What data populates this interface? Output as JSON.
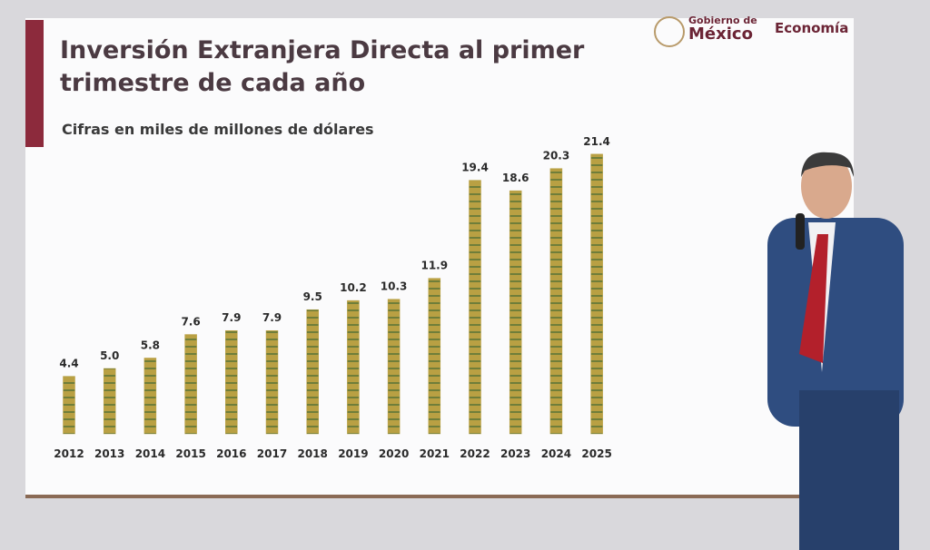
{
  "header": {
    "government": "Gobierno de",
    "country": "México",
    "ministry": "Economía"
  },
  "chart_data": {
    "type": "bar",
    "title": "Inversión Extranjera Directa al primer trimestre de cada año",
    "subtitle": "Cifras en miles de millones de dólares",
    "categories": [
      "2012",
      "2013",
      "2014",
      "2015",
      "2016",
      "2017",
      "2018",
      "2019",
      "2020",
      "2021",
      "2022",
      "2023",
      "2024",
      "2025"
    ],
    "values": [
      4.4,
      5.0,
      5.8,
      7.6,
      7.9,
      7.9,
      9.5,
      10.2,
      10.3,
      11.9,
      19.4,
      18.6,
      20.3,
      21.4
    ],
    "value_labels": [
      "4.4",
      "5.0",
      "5.8",
      "7.6",
      "7.9",
      "7.9",
      "9.5",
      "10.2",
      "10.3",
      "11.9",
      "19.4",
      "18.6",
      "20.3",
      "21.4"
    ],
    "color": "#b9a043"
  }
}
